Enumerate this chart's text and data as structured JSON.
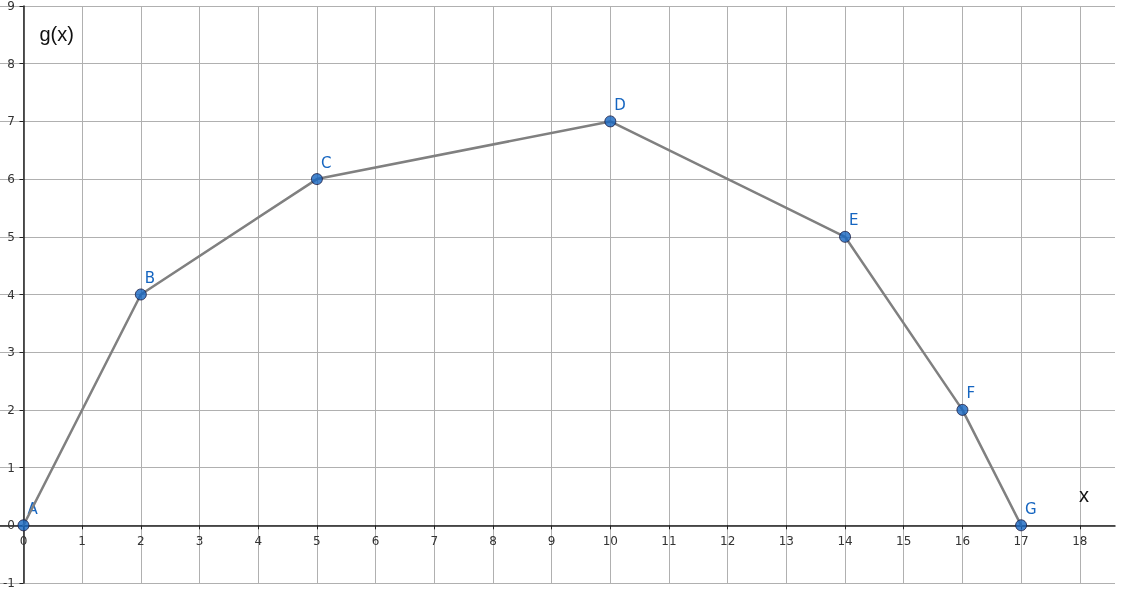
{
  "chart_data": {
    "type": "line",
    "xlabel": "x",
    "ylabel": "g(x)",
    "xlim": [
      -0.4,
      18.6
    ],
    "xticks": [
      0,
      1,
      2,
      3,
      4,
      5,
      6,
      7,
      8,
      9,
      10,
      11,
      12,
      13,
      14,
      15,
      16,
      17,
      18
    ],
    "ylim": [
      -1,
      9
    ],
    "yticks": [
      -1,
      0,
      1,
      2,
      3,
      4,
      5,
      6,
      7,
      8,
      9
    ],
    "grid": true,
    "series": [
      {
        "color": "#808080",
        "marker": "none",
        "x": [
          0,
          2,
          5,
          10,
          14,
          16,
          17
        ],
        "values": [
          0,
          4,
          6,
          7,
          5,
          2,
          0
        ]
      },
      {
        "type": "scatter",
        "color": "#1565c0",
        "marker": "circle",
        "x": [
          0,
          2,
          5,
          10,
          14,
          16,
          17
        ],
        "values": [
          0,
          4,
          6,
          7,
          5,
          2,
          0
        ]
      }
    ],
    "annotations": [
      {
        "text": "A",
        "x": 0,
        "y": 0
      },
      {
        "text": "B",
        "x": 2,
        "y": 4
      },
      {
        "text": "C",
        "x": 5,
        "y": 6
      },
      {
        "text": "D",
        "x": 10,
        "y": 7
      },
      {
        "text": "E",
        "x": 14,
        "y": 5
      },
      {
        "text": "F",
        "x": 16,
        "y": 2
      },
      {
        "text": "G",
        "x": 17,
        "y": 0
      }
    ]
  }
}
